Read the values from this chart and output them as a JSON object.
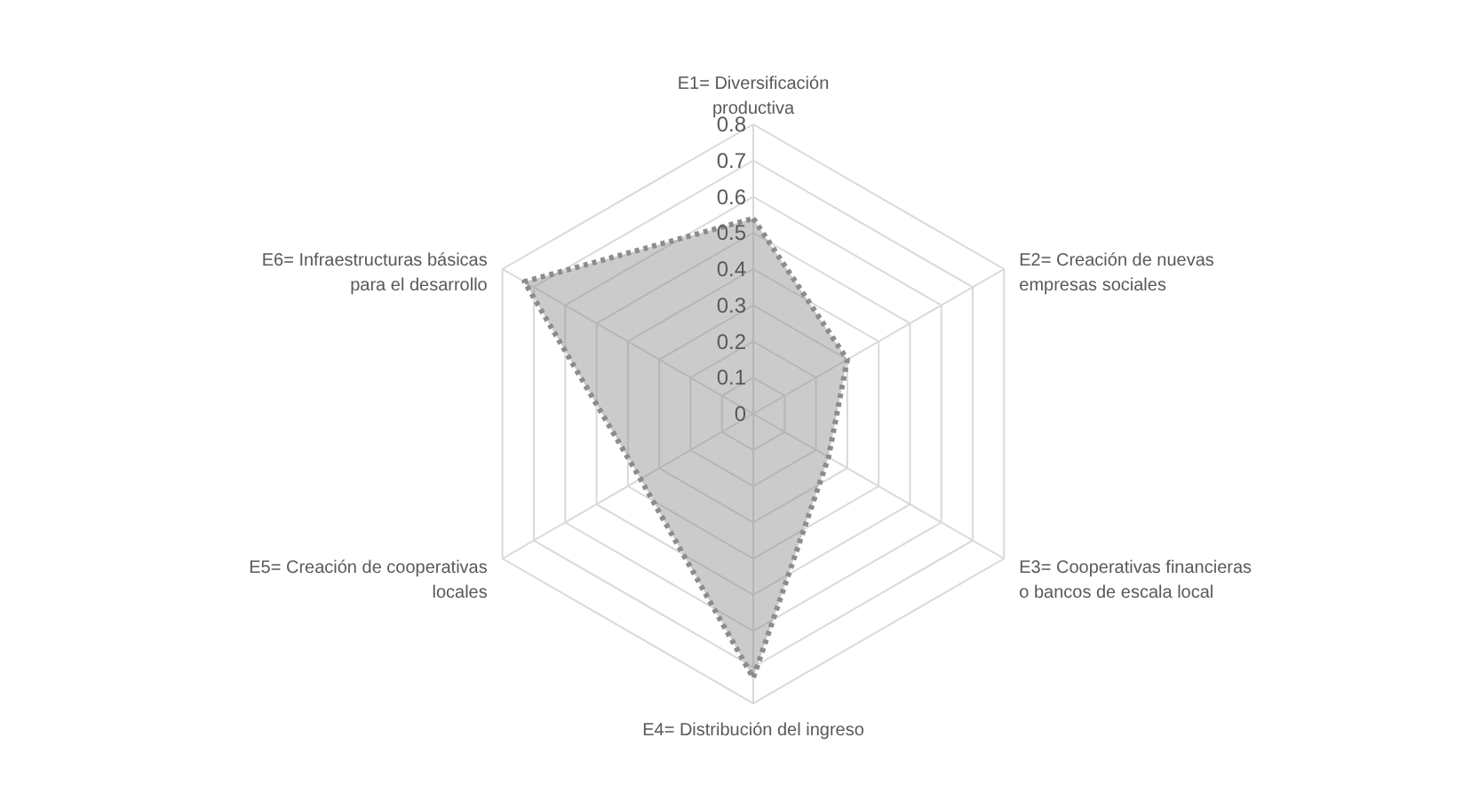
{
  "chart_data": {
    "type": "radar",
    "categories": [
      "E1= Diversificación productiva",
      "E2= Creación de nuevas empresas sociales",
      "E3= Cooperativas financieras o bancos de escala local",
      "E4= Distribución del ingreso",
      "E5= Creación de cooperativas locales",
      "E6= Infraestructuras básicas para el desarrollo"
    ],
    "series": [
      {
        "color": "#8c8c8c",
        "values": [
          0.54,
          0.3,
          0.24,
          0.73,
          0.36,
          0.73
        ]
      }
    ],
    "ylim": [
      0,
      0.8
    ],
    "yticks": [
      0,
      0.1,
      0.2,
      0.3,
      0.4,
      0.5,
      0.6,
      0.7,
      0.8
    ],
    "grid": true,
    "marker": "none",
    "line_style": "dotted"
  }
}
